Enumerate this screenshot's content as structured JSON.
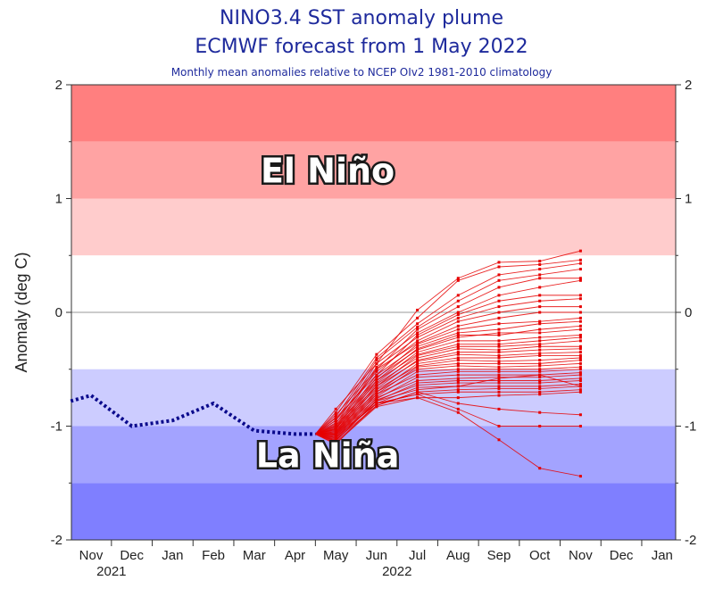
{
  "title": "NINO3.4 SST anomaly plume",
  "subtitle": "ECMWF forecast from 1 May 2022",
  "note": "Monthly mean anomalies relative to NCEP OIv2 1981-2010 climatology",
  "colors": {
    "band_strong": "#ff7f7f",
    "band_moderate": "#ffa3a3",
    "band_weak": "#ffcccc",
    "band_neutral": "#ffffff",
    "band_weak_cold": "#ccccff",
    "band_moderate_cold": "#a3a3ff",
    "band_strong_cold": "#7f7fff",
    "observed": "#0a0a8c",
    "forecast": "#e60000"
  },
  "chart_data": {
    "type": "line",
    "title": "NINO3.4 SST anomaly plume",
    "subtitle": "ECMWF forecast from 1 May 2022",
    "ylabel": "Anomaly (deg C)",
    "ylim": [
      -2,
      2
    ],
    "yticks": [
      -2,
      -1,
      0,
      1,
      2
    ],
    "x_labels": [
      "Nov",
      "Dec",
      "Jan",
      "Feb",
      "Mar",
      "Apr",
      "May",
      "Jun",
      "Jul",
      "Aug",
      "Sep",
      "Oct",
      "Nov",
      "Dec",
      "Jan"
    ],
    "year_labels": [
      {
        "label": "2021",
        "month_index": 0.5
      },
      {
        "label": "2022",
        "month_index": 7.5
      }
    ],
    "region_labels": {
      "warm": "El Niño",
      "cold": "La Niña"
    },
    "bands": [
      {
        "from": 1.5,
        "to": 2.0,
        "color": "#ff7f7f"
      },
      {
        "from": 1.0,
        "to": 1.5,
        "color": "#ffa3a3"
      },
      {
        "from": 0.5,
        "to": 1.0,
        "color": "#ffcccc"
      },
      {
        "from": -0.5,
        "to": 0.5,
        "color": "#ffffff"
      },
      {
        "from": -1.0,
        "to": -0.5,
        "color": "#ccccff"
      },
      {
        "from": -1.5,
        "to": -1.0,
        "color": "#a3a3ff"
      },
      {
        "from": -2.0,
        "to": -1.5,
        "color": "#7f7fff"
      }
    ],
    "observed": {
      "x": [
        -0.5,
        0,
        1,
        2,
        3,
        4,
        5,
        5.5
      ],
      "y": [
        -0.78,
        -0.73,
        -1.0,
        -0.95,
        -0.8,
        -1.04,
        -1.07,
        -1.07
      ]
    },
    "forecast_start_x": 5.5,
    "forecast_start_y": -1.07,
    "forecast_months_x": [
      6,
      7,
      8,
      9,
      10,
      11,
      12
    ],
    "forecast_members": [
      [
        -0.85,
        -0.45,
        0.02,
        0.3,
        0.44,
        0.45,
        0.54
      ],
      [
        -0.88,
        -0.37,
        -0.05,
        0.28,
        0.4,
        0.42,
        0.46
      ],
      [
        -0.92,
        -0.4,
        -0.1,
        0.15,
        0.33,
        0.38,
        0.43
      ],
      [
        -0.95,
        -0.42,
        -0.13,
        0.1,
        0.28,
        0.33,
        0.38
      ],
      [
        -0.9,
        -0.5,
        -0.15,
        0.05,
        0.22,
        0.3,
        0.3
      ],
      [
        -0.98,
        -0.45,
        -0.18,
        0.0,
        0.15,
        0.22,
        0.28
      ],
      [
        -0.93,
        -0.55,
        -0.2,
        -0.02,
        0.1,
        0.15,
        0.15
      ],
      [
        -1.0,
        -0.48,
        -0.22,
        -0.05,
        0.05,
        0.1,
        0.12
      ],
      [
        -0.95,
        -0.52,
        -0.25,
        -0.08,
        0.0,
        0.05,
        0.05
      ],
      [
        -1.02,
        -0.5,
        -0.27,
        -0.12,
        -0.05,
        0.0,
        0.0
      ],
      [
        -0.97,
        -0.58,
        -0.28,
        -0.15,
        -0.1,
        -0.08,
        -0.05
      ],
      [
        -1.03,
        -0.55,
        -0.3,
        -0.18,
        -0.15,
        -0.1,
        -0.08
      ],
      [
        -0.99,
        -0.6,
        -0.32,
        -0.2,
        -0.2,
        -0.15,
        -0.12
      ],
      [
        -1.05,
        -0.57,
        -0.33,
        -0.22,
        -0.18,
        -0.18,
        -0.15
      ],
      [
        -1.0,
        -0.62,
        -0.35,
        -0.25,
        -0.25,
        -0.22,
        -0.2
      ],
      [
        -1.06,
        -0.6,
        -0.37,
        -0.28,
        -0.28,
        -0.25,
        -0.22
      ],
      [
        -1.01,
        -0.65,
        -0.38,
        -0.3,
        -0.3,
        -0.28,
        -0.25
      ],
      [
        -1.07,
        -0.63,
        -0.4,
        -0.32,
        -0.33,
        -0.3,
        -0.3
      ],
      [
        -1.02,
        -0.67,
        -0.42,
        -0.35,
        -0.35,
        -0.33,
        -0.32
      ],
      [
        -1.08,
        -0.65,
        -0.43,
        -0.37,
        -0.38,
        -0.36,
        -0.35
      ],
      [
        -1.03,
        -0.7,
        -0.45,
        -0.4,
        -0.4,
        -0.38,
        -0.38
      ],
      [
        -1.09,
        -0.68,
        -0.47,
        -0.42,
        -0.43,
        -0.42,
        -0.4
      ],
      [
        -1.04,
        -0.72,
        -0.48,
        -0.45,
        -0.45,
        -0.45,
        -0.42
      ],
      [
        -1.1,
        -0.7,
        -0.5,
        -0.47,
        -0.48,
        -0.47,
        -0.45
      ],
      [
        -1.05,
        -0.74,
        -0.52,
        -0.5,
        -0.5,
        -0.5,
        -0.48
      ],
      [
        -1.11,
        -0.72,
        -0.55,
        -0.52,
        -0.52,
        -0.52,
        -0.5
      ],
      [
        -1.06,
        -0.76,
        -0.57,
        -0.55,
        -0.55,
        -0.55,
        -0.53
      ],
      [
        -1.12,
        -0.75,
        -0.6,
        -0.58,
        -0.57,
        -0.57,
        -0.55
      ],
      [
        -1.07,
        -0.78,
        -0.62,
        -0.6,
        -0.6,
        -0.6,
        -0.58
      ],
      [
        -1.13,
        -0.77,
        -0.64,
        -0.62,
        -0.62,
        -0.62,
        -0.6
      ],
      [
        -1.08,
        -0.8,
        -0.66,
        -0.65,
        -0.65,
        -0.65,
        -0.63
      ],
      [
        -1.14,
        -0.82,
        -0.7,
        -0.68,
        -0.67,
        -0.67,
        -0.65
      ],
      [
        -1.1,
        -0.8,
        -0.72,
        -0.7,
        -0.7,
        -0.7,
        -0.68
      ],
      [
        -1.15,
        -0.83,
        -0.75,
        -0.75,
        -0.73,
        -0.72,
        -0.7
      ],
      [
        -1.12,
        -0.82,
        -0.7,
        -0.8,
        -0.85,
        -0.88,
        -0.9
      ],
      [
        -1.16,
        -0.8,
        -0.72,
        -0.85,
        -1.0,
        -1.0,
        -1.0
      ],
      [
        -1.13,
        -0.78,
        -0.68,
        -0.65,
        -0.58,
        -0.55,
        -0.65
      ],
      [
        -1.1,
        -0.8,
        -0.75,
        -0.88,
        -1.12,
        -1.37,
        -1.44
      ]
    ]
  }
}
